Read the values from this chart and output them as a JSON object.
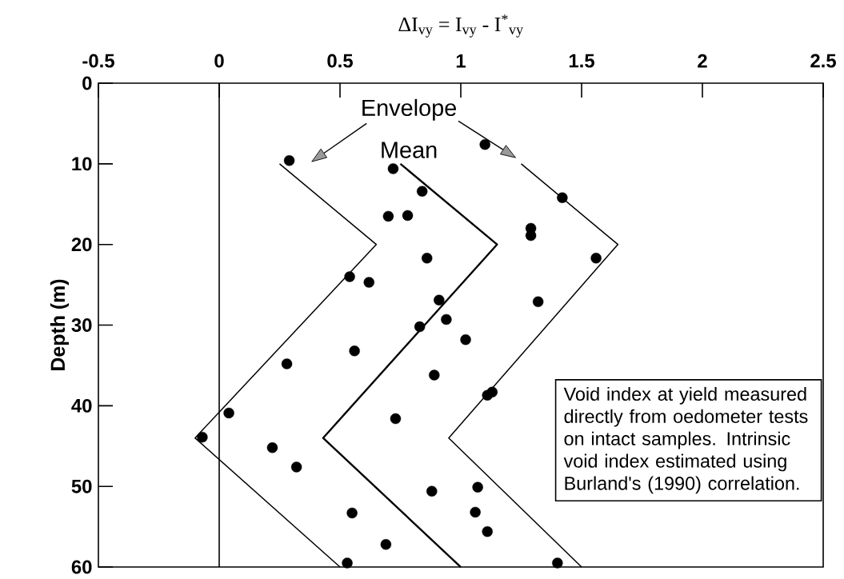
{
  "chart_data": {
    "type": "scatter",
    "xlabel": "ΔI$_{vy}$ = I$_{vy}$ - I$^{*}$$_{vy}$",
    "ylabel": "Depth (m)",
    "xlim": [
      -0.5,
      2.5
    ],
    "xticks": [
      -0.5,
      0,
      0.5,
      1,
      1.5,
      2,
      2.5
    ],
    "ylim": [
      60,
      0
    ],
    "yticks": [
      0,
      10,
      20,
      30,
      40,
      50,
      60
    ],
    "grid": false,
    "ref_lines": [
      {
        "axis": "x",
        "value": 0,
        "color": "#000000"
      }
    ],
    "annotations": [
      "Envelope",
      "Mean",
      "Void index at yield measured directly from oedometer tests on intact samples.  Intrinsic void index estimated using Burland's (1990) correlation."
    ],
    "series": [
      {
        "color": "#000000",
        "marker": "circle",
        "x": [
          0.29,
          0.72,
          0.84,
          0.7,
          0.78,
          0.86,
          0.54,
          0.62,
          0.91,
          1.1,
          1.42,
          1.29,
          1.29,
          1.56,
          1.32,
          0.94,
          0.83,
          1.02,
          0.56,
          0.28,
          0.89,
          0.04,
          0.73,
          -0.07,
          0.22,
          0.32,
          0.88,
          0.55,
          0.69,
          0.53,
          1.11,
          1.13,
          1.07,
          1.06,
          1.11,
          1.4
        ],
        "values": [
          9.6,
          10.6,
          13.4,
          16.5,
          16.4,
          21.7,
          24.0,
          24.7,
          26.9,
          7.6,
          14.2,
          18.0,
          18.9,
          21.7,
          27.1,
          29.3,
          30.2,
          31.8,
          33.2,
          34.8,
          36.2,
          40.9,
          41.6,
          43.9,
          45.2,
          47.6,
          50.6,
          53.3,
          57.2,
          59.5,
          38.7,
          38.3,
          50.1,
          53.2,
          55.6,
          59.5
        ]
      },
      {
        "type": "line",
        "color": "#000000",
        "marker": "none",
        "x": [
          0.25,
          0.65,
          -0.1,
          0.5
        ],
        "values": [
          10,
          20,
          44,
          60
        ]
      },
      {
        "type": "line",
        "color": "#000000",
        "marker": "none",
        "x": [
          0.75,
          1.15,
          0.43,
          1.0
        ],
        "values": [
          10,
          20,
          44,
          60
        ]
      },
      {
        "type": "line",
        "color": "#000000",
        "marker": "none",
        "x": [
          1.25,
          1.65,
          0.95,
          1.5
        ],
        "values": [
          10,
          20,
          44,
          60
        ]
      }
    ]
  }
}
